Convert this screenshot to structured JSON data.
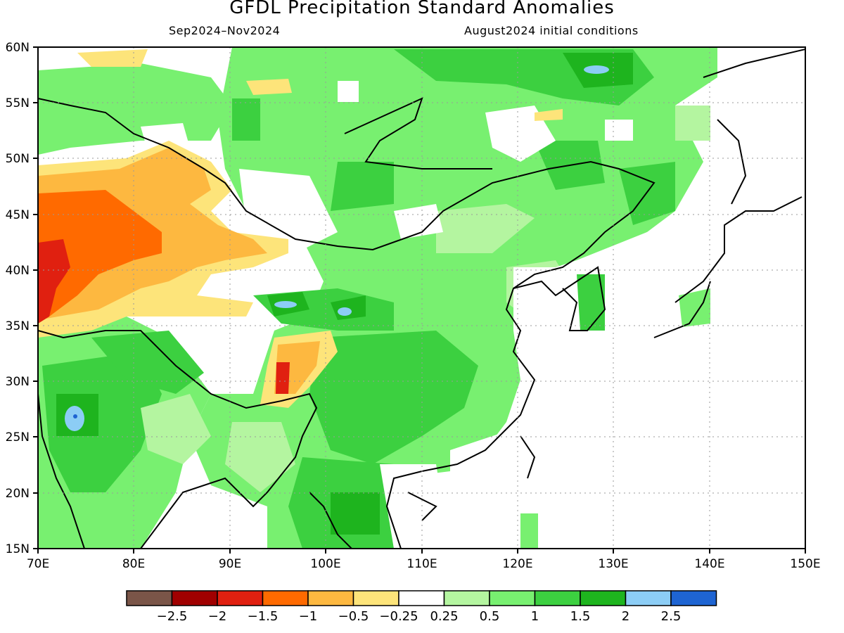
{
  "header": {
    "title": "GFDL Precipitation Standard Anomalies",
    "period": "Sep2024–Nov2024",
    "init": "August2024 initial conditions"
  },
  "map": {
    "lon_range": [
      70,
      150
    ],
    "lat_range": [
      15,
      60
    ],
    "x_ticks": [
      "70E",
      "80E",
      "90E",
      "100E",
      "110E",
      "120E",
      "130E",
      "140E",
      "150E"
    ],
    "y_ticks": [
      "60N",
      "55N",
      "50N",
      "45N",
      "40N",
      "35N",
      "30N",
      "25N",
      "20N",
      "15N"
    ]
  },
  "colorbar": {
    "colors": [
      "#7a5548",
      "#a00000",
      "#e02010",
      "#ff6a00",
      "#fdb840",
      "#fde47a",
      "#ffffff",
      "#b4f5a0",
      "#78f070",
      "#3cd040",
      "#1eb41e",
      "#8ccdf5",
      "#1e64d2"
    ],
    "labels": [
      "−2.5",
      "−2",
      "−1.5",
      "−1",
      "−0.5",
      "−0.25",
      "0.25",
      "0.5",
      "1",
      "1.5",
      "2",
      "2.5"
    ]
  }
}
